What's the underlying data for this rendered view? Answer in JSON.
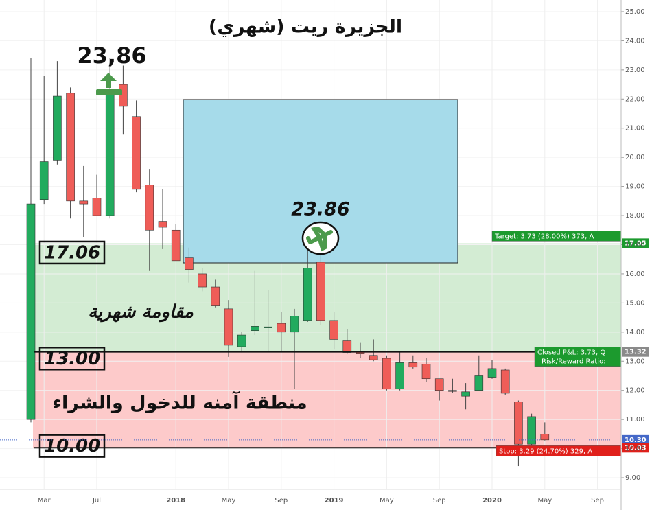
{
  "chart_data": {
    "type": "candlestick",
    "title": "الجزيرة ريت (شهري)",
    "categories": [
      null,
      "Mar",
      null,
      null,
      null,
      "Jul",
      null,
      null,
      null,
      null,
      null,
      "2018",
      null,
      null,
      null,
      "May",
      null,
      null,
      null,
      "Sep",
      null,
      null,
      null,
      "2019",
      null,
      null,
      null,
      "May",
      null,
      null,
      null,
      "Sep",
      null,
      null,
      null,
      "2020",
      null,
      null,
      null,
      "May",
      null,
      null,
      null,
      "Sep"
    ],
    "open": [
      11.0,
      18.55,
      19.9,
      22.2,
      18.5,
      18.6,
      18.0,
      22.5,
      21.4,
      19.05,
      17.8,
      17.5,
      16.55,
      16.0,
      15.55,
      14.8,
      13.5,
      14.05,
      14.15,
      14.3,
      14.0,
      14.4,
      16.4,
      14.4,
      13.7,
      13.35,
      13.2,
      13.1,
      12.05,
      12.95,
      12.9,
      12.4,
      11.98,
      11.8,
      12.0,
      12.45,
      12.7,
      11.6,
      10.15,
      10.5,
      null,
      null,
      null,
      null
    ],
    "high": [
      23.4,
      22.8,
      23.3,
      22.4,
      19.7,
      19.4,
      23.4,
      23.15,
      21.95,
      19.6,
      18.9,
      17.7,
      16.9,
      16.2,
      15.8,
      15.1,
      14.0,
      16.1,
      15.45,
      14.7,
      14.8,
      16.8,
      17.0,
      14.7,
      14.1,
      13.65,
      13.75,
      13.2,
      13.3,
      13.2,
      13.1,
      12.4,
      12.4,
      12.25,
      13.2,
      13.05,
      12.75,
      11.65,
      11.2,
      10.9,
      null,
      null,
      null,
      null
    ],
    "low": [
      10.9,
      18.4,
      19.75,
      17.9,
      17.25,
      18.0,
      17.9,
      20.8,
      18.8,
      16.1,
      16.85,
      16.45,
      15.7,
      15.4,
      14.85,
      13.15,
      13.3,
      13.9,
      13.35,
      13.35,
      12.05,
      14.35,
      14.25,
      13.4,
      13.25,
      13.1,
      13.0,
      12.0,
      12.0,
      12.75,
      12.3,
      11.65,
      11.9,
      11.35,
      11.98,
      12.4,
      11.85,
      9.4,
      10.1,
      10.28,
      null,
      null,
      null,
      null
    ],
    "close": [
      18.4,
      19.85,
      22.1,
      18.5,
      18.4,
      18.0,
      22.15,
      21.75,
      18.9,
      17.5,
      17.6,
      16.45,
      16.15,
      15.55,
      14.9,
      13.55,
      13.9,
      14.2,
      14.18,
      14.0,
      14.55,
      16.2,
      14.4,
      13.75,
      13.3,
      13.25,
      13.05,
      12.05,
      12.95,
      12.8,
      12.4,
      12.0,
      12.0,
      11.95,
      12.5,
      12.75,
      11.9,
      10.15,
      11.1,
      10.3,
      null,
      null,
      null,
      null
    ],
    "up_color": "#22ab5e",
    "down_color": "#ef5d58",
    "ylim": [
      8.6,
      25.4
    ],
    "yticks": [
      {
        "value": 9,
        "label": "9.00"
      },
      {
        "value": 10,
        "label": "10.00"
      },
      {
        "value": 11,
        "label": "11.00"
      },
      {
        "value": 12,
        "label": "12.00"
      },
      {
        "value": 13,
        "label": "13.00"
      },
      {
        "value": 14,
        "label": "14.00"
      },
      {
        "value": 15,
        "label": "15.00"
      },
      {
        "value": 16,
        "label": "16.00"
      },
      {
        "value": 17,
        "label": "17.00"
      },
      {
        "value": 18,
        "label": "18.00"
      },
      {
        "value": 19,
        "label": "19.00"
      },
      {
        "value": 20,
        "label": "20.00"
      },
      {
        "value": 21,
        "label": "21.00"
      },
      {
        "value": 22,
        "label": "22.00"
      },
      {
        "value": 23,
        "label": "23.00"
      },
      {
        "value": 24,
        "label": "24.00"
      },
      {
        "value": 25,
        "label": "25.00"
      }
    ],
    "zones": [
      {
        "from": 13.32,
        "to": 17.05,
        "color": "#d3ecd3"
      },
      {
        "from": 10.03,
        "to": 13.32,
        "color": "#fdcaca"
      }
    ],
    "levels": [
      {
        "value": 17.06,
        "label": "17.06"
      },
      {
        "value": 13.0,
        "label": "13.00"
      },
      {
        "value": 10.0,
        "label": "10.00"
      }
    ],
    "price_tags": [
      {
        "value": 17.05,
        "label": "17.05",
        "color": "#1c9a2e",
        "note": "Target: 3.73 (28.00%) 373, A"
      },
      {
        "value": 13.32,
        "label": "13.32",
        "color": "#8a8a8a",
        "note": "Closed P&L: 3.73, Q"
      },
      {
        "value": 10.3,
        "label": "10.30",
        "color": "#4468c8",
        "note": null
      },
      {
        "value": 10.03,
        "label": "10.03",
        "color": "#e0201b",
        "note": "Stop: 3.29 (24.70%) 329, A"
      }
    ],
    "risk_reward": "Risk/Reward Ratio:",
    "annotations": {
      "peak": "23,86",
      "target": "23.86",
      "resistance": "مقاومة شهرية",
      "buy_zone": "منطقة آمنه للدخول والشراء"
    }
  }
}
